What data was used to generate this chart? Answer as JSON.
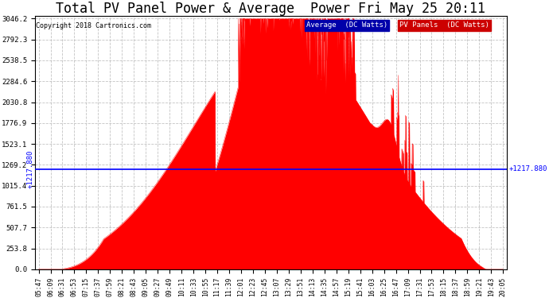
{
  "title": "Total PV Panel Power & Average  Power Fri May 25 20:11",
  "copyright": "Copyright 2018 Cartronics.com",
  "average_value": 1217.88,
  "average_label": "1217.880",
  "y_max": 3046.2,
  "y_min": 0.0,
  "y_ticks": [
    0.0,
    253.8,
    507.7,
    761.5,
    1015.4,
    1269.2,
    1523.1,
    1776.9,
    2030.8,
    2284.6,
    2538.5,
    2792.3,
    3046.2
  ],
  "fill_color": "#ff0000",
  "avg_line_color": "#0000ff",
  "background_color": "#ffffff",
  "grid_color": "#aaaaaa",
  "title_fontsize": 12,
  "x_labels": [
    "05:47",
    "06:09",
    "06:31",
    "06:53",
    "07:15",
    "07:37",
    "07:59",
    "08:21",
    "08:43",
    "09:05",
    "09:27",
    "09:49",
    "10:11",
    "10:33",
    "10:55",
    "11:17",
    "11:39",
    "12:01",
    "12:23",
    "12:45",
    "13:07",
    "13:29",
    "13:51",
    "14:13",
    "14:35",
    "14:57",
    "15:19",
    "15:41",
    "16:03",
    "16:25",
    "16:47",
    "17:09",
    "17:31",
    "17:53",
    "18:15",
    "18:37",
    "18:59",
    "19:21",
    "19:43",
    "20:05"
  ]
}
